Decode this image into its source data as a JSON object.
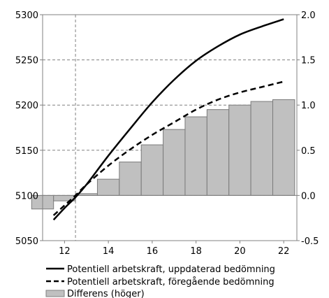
{
  "chart_data": {
    "type": "bar+line",
    "x": [
      11,
      12,
      13,
      14,
      15,
      16,
      17,
      18,
      19,
      20,
      21,
      22
    ],
    "x_ticks": [
      12,
      14,
      16,
      18,
      20,
      22
    ],
    "x_tick_labels": [
      "12",
      "14",
      "16",
      "18",
      "20",
      "22"
    ],
    "xlim": [
      11,
      22.6
    ],
    "y_left": {
      "lim": [
        5050,
        5300
      ],
      "ticks": [
        5050,
        5100,
        5150,
        5200,
        5250,
        5300
      ],
      "tick_labels": [
        "5050",
        "5100",
        "5150",
        "5200",
        "5250",
        "5300"
      ]
    },
    "y_right": {
      "lim": [
        -0.5,
        2.0
      ],
      "ticks": [
        -0.5,
        0.0,
        0.5,
        1.0,
        1.5,
        2.0
      ],
      "tick_labels": [
        "-0.5",
        "0.0",
        "0.5",
        "1.0",
        "1.5",
        "2.0"
      ]
    },
    "grid": "horizontal-dashed",
    "vertical_marker_x": 12.5,
    "series": [
      {
        "name": "Potentiell arbetskraft, uppdaterad bedömning",
        "type": "line",
        "axis": "left",
        "style": "solid",
        "color": "#000000",
        "x": [
          11.5,
          12,
          12.5,
          13,
          14,
          15,
          16,
          17,
          18,
          19,
          20,
          21,
          22
        ],
        "values": [
          5073,
          5086,
          5098,
          5112,
          5144,
          5174,
          5203,
          5228,
          5249,
          5265,
          5278,
          5287,
          5295
        ]
      },
      {
        "name": "Potentiell arbetskraft, föregående bedömning",
        "type": "line",
        "axis": "left",
        "style": "dashed",
        "color": "#000000",
        "x": [
          11.5,
          12,
          12.5,
          13,
          14,
          15,
          16,
          17,
          18,
          19,
          20,
          21,
          22
        ],
        "values": [
          5078,
          5089,
          5100,
          5112,
          5133,
          5151,
          5167,
          5181,
          5195,
          5206,
          5214,
          5220,
          5226
        ]
      },
      {
        "name": "Differens (höger)",
        "type": "bar",
        "axis": "right",
        "color": "#c0c0c0",
        "categories": [
          11,
          12,
          13,
          14,
          15,
          16,
          17,
          18,
          19,
          20,
          21,
          22
        ],
        "values": [
          -0.15,
          -0.06,
          0.02,
          0.18,
          0.37,
          0.56,
          0.73,
          0.87,
          0.95,
          1.0,
          1.04,
          1.06
        ]
      }
    ],
    "legend_position": "bottom"
  }
}
